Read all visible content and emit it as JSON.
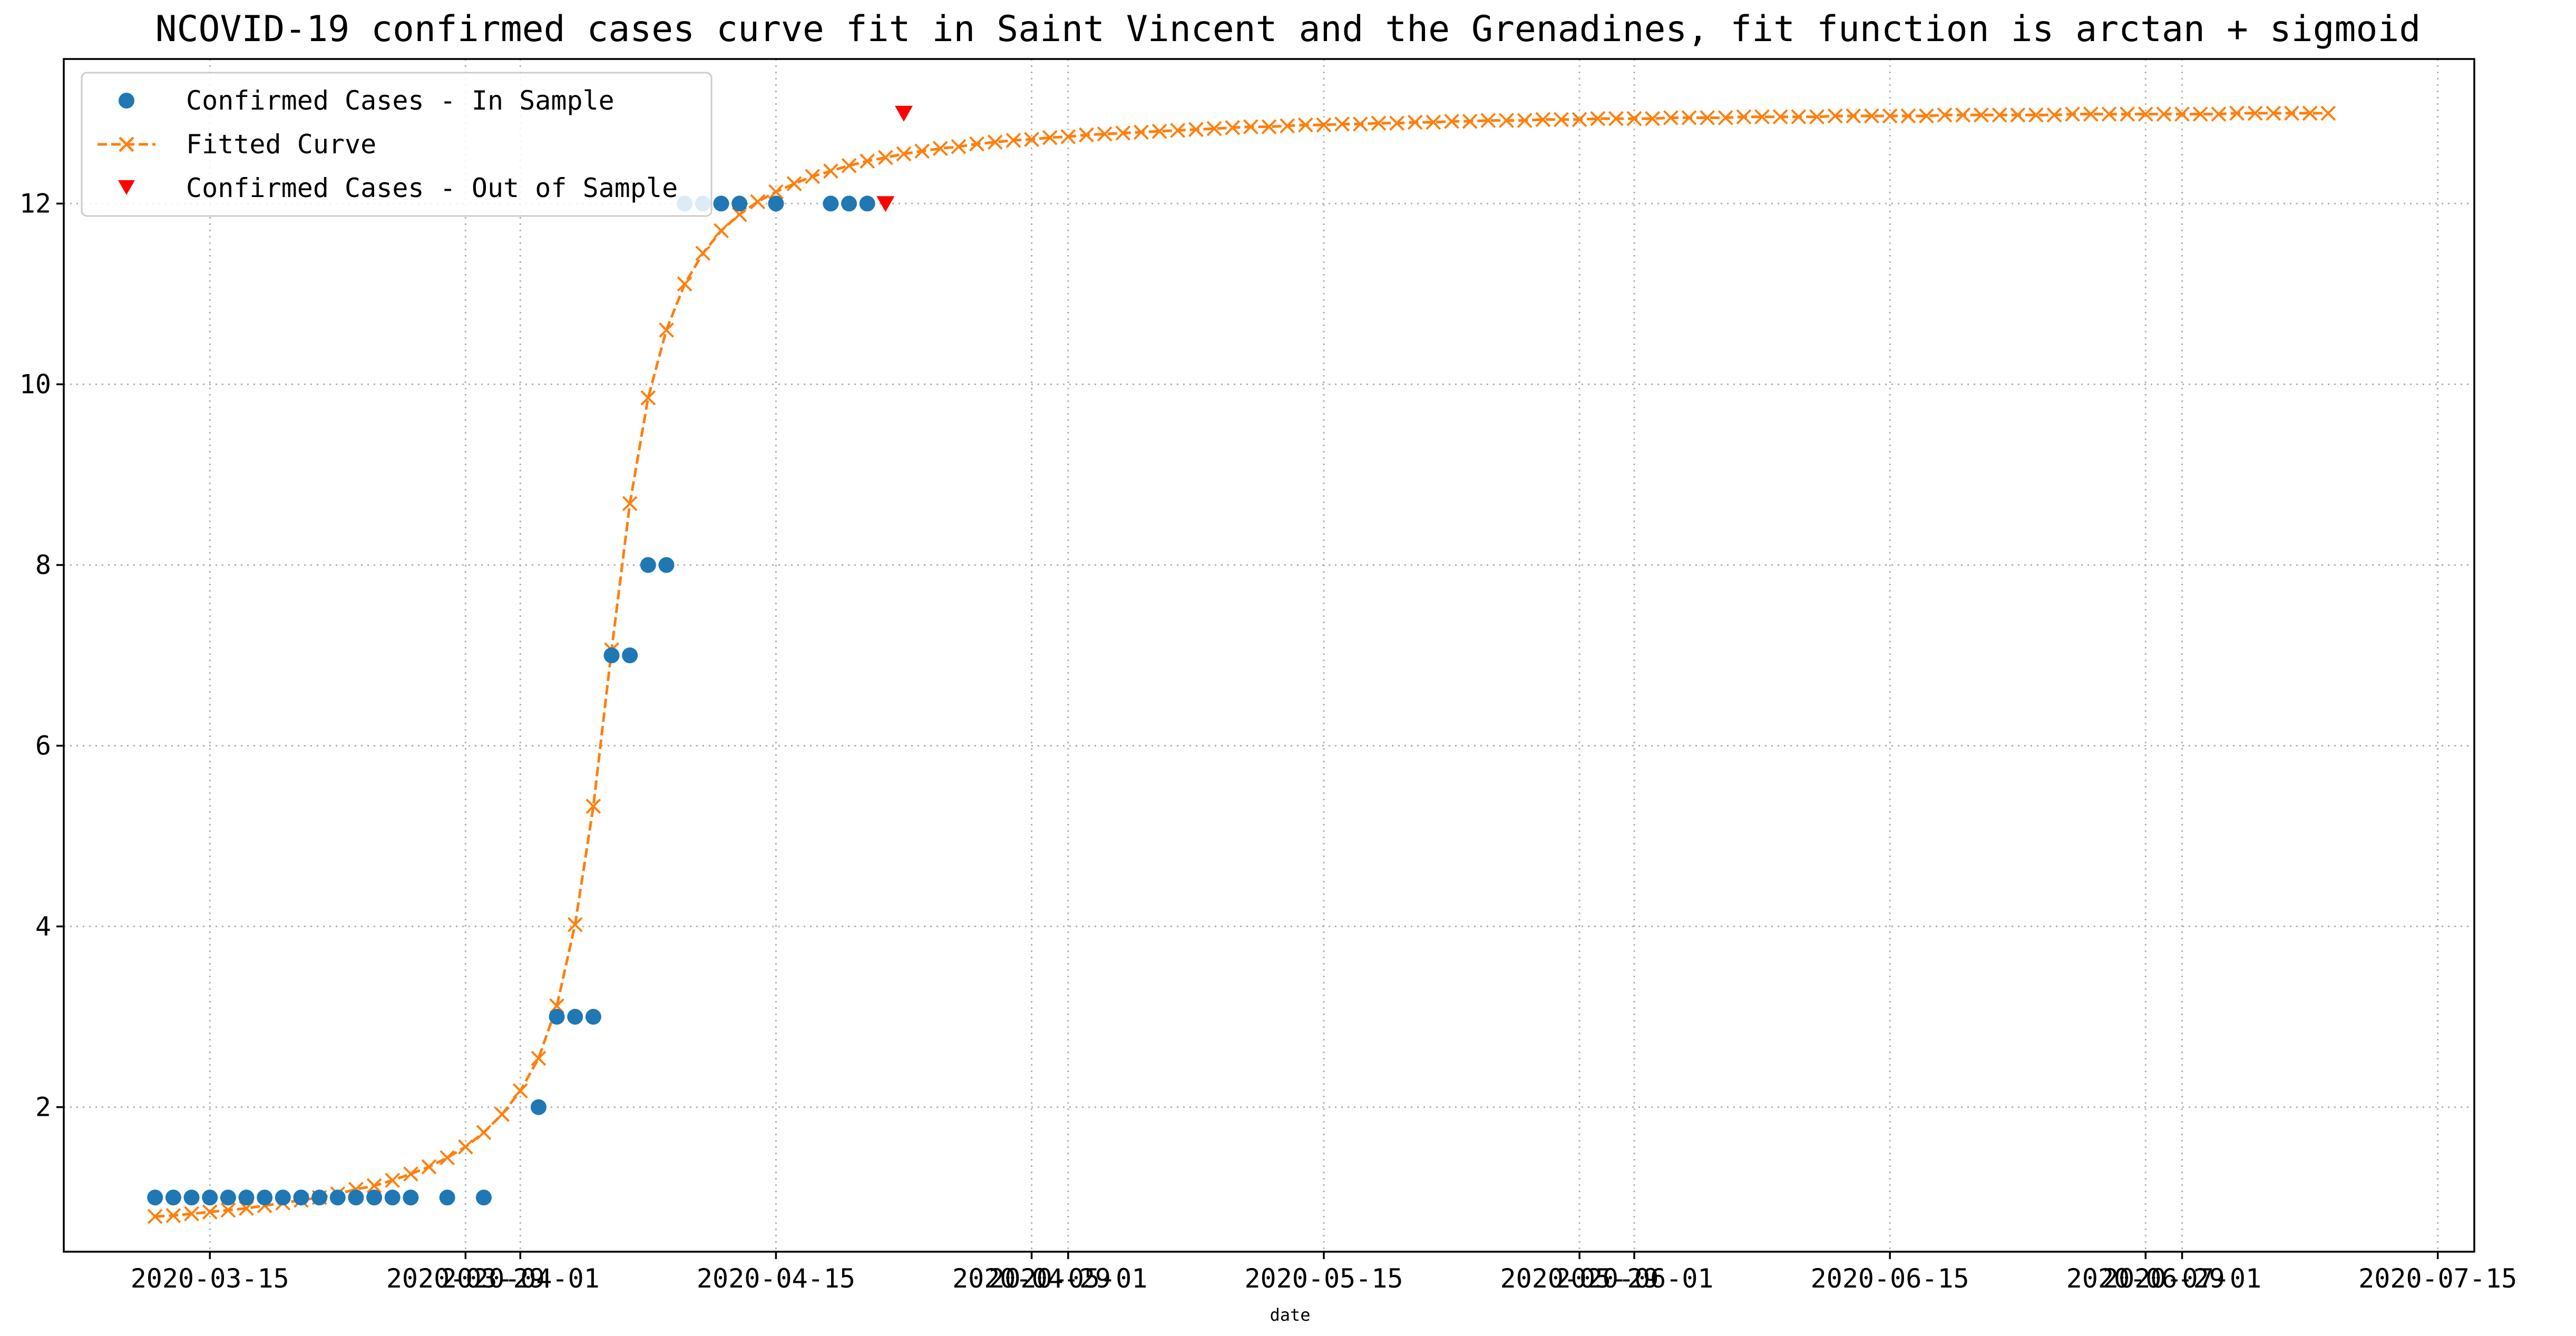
{
  "chart_data": {
    "type": "scatter",
    "title": "NCOVID-19 confirmed cases curve fit in Saint Vincent and the Grenadines, fit function is arctan + sigmoid",
    "xlabel": "date",
    "ylabel": "",
    "x_ticks": [
      "2020-03-15",
      "2020-03-29",
      "2020-04-01",
      "2020-04-15",
      "2020-04-29",
      "2020-05-01",
      "2020-05-15",
      "2020-05-29",
      "2020-06-01",
      "2020-06-15",
      "2020-06-29",
      "2020-07-01",
      "2020-07-15"
    ],
    "y_ticks": [
      2,
      4,
      6,
      8,
      10,
      12
    ],
    "xlim": [
      "2020-03-07",
      "2020-07-17"
    ],
    "ylim": [
      0.4,
      13.6
    ],
    "grid": true,
    "legend": "top-left",
    "legend_entries": {
      "in_sample": "Confirmed Cases - In Sample",
      "fitted": "Fitted Curve",
      "out_sample": "Confirmed Cases - Out of Sample"
    },
    "colors": {
      "in_sample": "#1f77b4",
      "fitted": "#ff7f0e",
      "out_sample": "#ff0000"
    },
    "series": [
      {
        "name": "Confirmed Cases - In Sample",
        "marker": "circle",
        "points": [
          [
            "2020-03-12",
            1
          ],
          [
            "2020-03-13",
            1
          ],
          [
            "2020-03-14",
            1
          ],
          [
            "2020-03-15",
            1
          ],
          [
            "2020-03-16",
            1
          ],
          [
            "2020-03-17",
            1
          ],
          [
            "2020-03-18",
            1
          ],
          [
            "2020-03-19",
            1
          ],
          [
            "2020-03-20",
            1
          ],
          [
            "2020-03-21",
            1
          ],
          [
            "2020-03-22",
            1
          ],
          [
            "2020-03-23",
            1
          ],
          [
            "2020-03-24",
            1
          ],
          [
            "2020-03-25",
            1
          ],
          [
            "2020-03-26",
            1
          ],
          [
            "2020-03-28",
            1
          ],
          [
            "2020-03-30",
            1
          ],
          [
            "2020-04-02",
            2
          ],
          [
            "2020-04-03",
            3
          ],
          [
            "2020-04-04",
            3
          ],
          [
            "2020-04-05",
            3
          ],
          [
            "2020-04-06",
            7
          ],
          [
            "2020-04-07",
            7
          ],
          [
            "2020-04-08",
            8
          ],
          [
            "2020-04-09",
            8
          ],
          [
            "2020-04-10",
            12
          ],
          [
            "2020-04-11",
            12
          ],
          [
            "2020-04-12",
            12
          ],
          [
            "2020-04-13",
            12
          ],
          [
            "2020-04-15",
            12
          ],
          [
            "2020-04-18",
            12
          ],
          [
            "2020-04-19",
            12
          ],
          [
            "2020-04-20",
            12
          ]
        ]
      },
      {
        "name": "Fitted Curve",
        "marker": "x",
        "line": "dashed",
        "x_start": "2020-03-12",
        "x_end": "2020-07-10",
        "values": [
          0.79,
          0.8,
          0.82,
          0.84,
          0.86,
          0.88,
          0.91,
          0.94,
          0.97,
          1.0,
          1.04,
          1.09,
          1.13,
          1.19,
          1.26,
          1.34,
          1.44,
          1.56,
          1.72,
          1.92,
          2.18,
          2.54,
          3.12,
          4.02,
          5.33,
          7.06,
          8.68,
          9.85,
          10.6,
          11.11,
          11.45,
          11.7,
          11.88,
          12.02,
          12.13,
          12.22,
          12.3,
          12.36,
          12.42,
          12.47,
          12.51,
          12.55,
          12.58,
          12.61,
          12.63,
          12.66,
          12.68,
          12.7,
          12.71,
          12.73,
          12.74,
          12.76,
          12.77,
          12.78,
          12.79,
          12.8,
          12.81,
          12.82,
          12.83,
          12.84,
          12.85,
          12.85,
          12.86,
          12.87,
          12.87,
          12.88,
          12.88,
          12.89,
          12.89,
          12.9,
          12.9,
          12.91,
          12.91,
          12.92,
          12.92,
          12.92,
          12.93,
          12.93,
          12.93,
          12.94,
          12.94,
          12.94,
          12.94,
          12.95,
          12.95,
          12.95,
          12.95,
          12.96,
          12.96,
          12.96,
          12.96,
          12.96,
          12.97,
          12.97,
          12.97,
          12.97,
          12.97,
          12.97,
          12.98,
          12.98,
          12.98,
          12.98,
          12.98,
          12.98,
          12.98,
          12.99,
          12.99,
          12.99,
          12.99,
          12.99,
          12.99,
          12.99,
          12.99,
          12.99,
          13.0,
          13.0,
          13.0,
          13.0,
          13.0,
          13.0
        ]
      },
      {
        "name": "Confirmed Cases - Out of Sample",
        "marker": "triangle-down",
        "points": [
          [
            "2020-04-21",
            12
          ],
          [
            "2020-04-22",
            13
          ]
        ]
      }
    ]
  }
}
